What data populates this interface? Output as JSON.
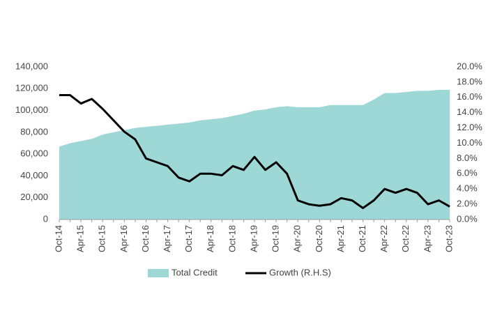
{
  "chart_data": {
    "type": "combo",
    "categories": [
      "Oct-14",
      null,
      "Apr-15",
      null,
      "Oct-15",
      null,
      "Apr-16",
      null,
      "Oct-16",
      null,
      "Apr-17",
      null,
      "Oct-17",
      null,
      "Apr-18",
      null,
      "Oct-18",
      null,
      "Apr-19",
      null,
      "Oct-19",
      null,
      "Apr-20",
      null,
      "Oct-20",
      null,
      "Apr-21",
      null,
      "Oct-21",
      null,
      "Apr-22",
      null,
      "Oct-22",
      null,
      "Apr-23",
      null,
      "Oct-23"
    ],
    "series": [
      {
        "name": "Total Credit",
        "type": "area",
        "color": "#9ed8d6",
        "axis": "y",
        "values": [
          67000,
          70000,
          72000,
          74000,
          78000,
          80000,
          82000,
          84000,
          85000,
          86000,
          87000,
          88000,
          89000,
          91000,
          92000,
          93000,
          95000,
          97000,
          100000,
          101000,
          103000,
          104000,
          103000,
          103000,
          103000,
          105000,
          105000,
          105000,
          105000,
          110000,
          116000,
          116000,
          117000,
          118000,
          118000,
          119000,
          119000
        ]
      },
      {
        "name": "Growth (R.H.S)",
        "type": "line",
        "color": "#000000",
        "axis": "y2",
        "values": [
          16.3,
          16.3,
          15.2,
          15.8,
          14.5,
          13.0,
          11.5,
          10.5,
          8.0,
          7.5,
          7.0,
          5.5,
          5.0,
          6.0,
          6.0,
          5.8,
          7.0,
          6.5,
          8.2,
          6.5,
          7.5,
          6.0,
          2.5,
          2.0,
          1.8,
          2.0,
          2.8,
          2.5,
          1.5,
          2.5,
          4.0,
          3.5,
          4.0,
          3.5,
          2.0,
          2.5,
          1.7
        ]
      }
    ],
    "ylim": [
      0,
      140000
    ],
    "yticks": [
      0,
      {
        "value": 20000,
        "label": "20,000"
      },
      {
        "value": 40000,
        "label": "40,000"
      },
      {
        "value": 60000,
        "label": "60,000"
      },
      {
        "value": 80000,
        "label": "80,000"
      },
      {
        "value": 100000,
        "label": "100,000"
      },
      {
        "value": 120000,
        "label": "120,000"
      },
      {
        "value": 140000,
        "label": "140,000"
      }
    ],
    "y2lim": [
      0,
      20
    ],
    "y2ticks": [
      {
        "value": 0,
        "label": "0.0%"
      },
      {
        "value": 2,
        "label": "2.0%"
      },
      {
        "value": 4,
        "label": "4.0%"
      },
      {
        "value": 6,
        "label": "6.0%"
      },
      {
        "value": 8,
        "label": "8.0%"
      },
      {
        "value": 10,
        "label": "10.0%"
      },
      {
        "value": 12,
        "label": "12.0%"
      },
      {
        "value": 14,
        "label": "14.0%"
      },
      {
        "value": 16,
        "label": "16.0%"
      },
      {
        "value": 18,
        "label": "18.0%"
      },
      {
        "value": 20,
        "label": "20.0%"
      }
    ],
    "legend": "bottom"
  }
}
